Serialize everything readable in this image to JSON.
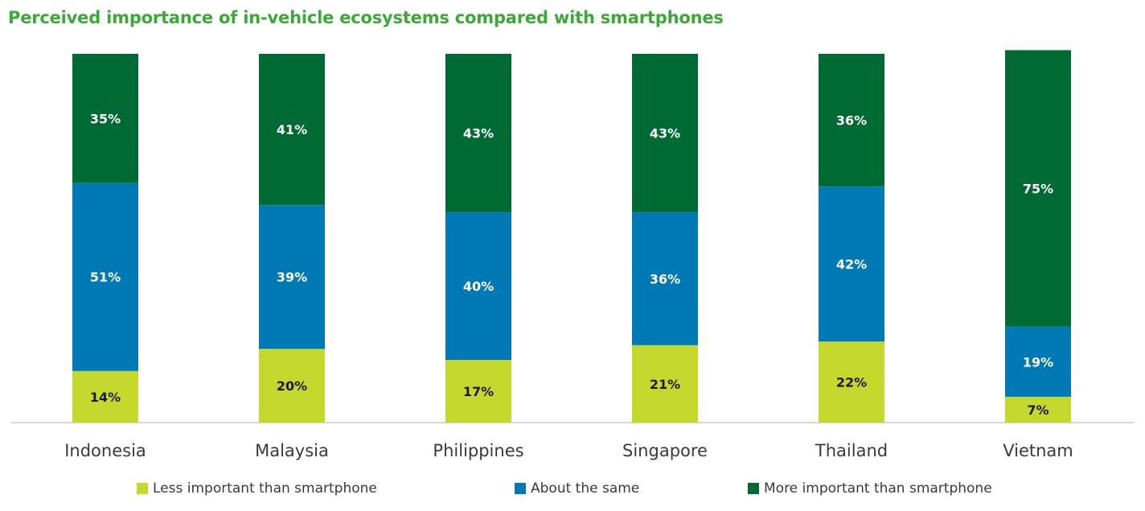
{
  "title": "Perceived importance of in-vehicle ecosystems compared with smartphones",
  "colors": {
    "less": "#c4d82e",
    "same": "#0079b4",
    "more": "#006a35",
    "title": "#3aa935",
    "axis": "#cccccc"
  },
  "legend": [
    {
      "key": "less",
      "label": "Less important than smartphone"
    },
    {
      "key": "same",
      "label": "About the same"
    },
    {
      "key": "more",
      "label": "More important than smartphone"
    }
  ],
  "chart_data": {
    "type": "bar",
    "stacked": true,
    "title": "Perceived importance of in-vehicle ecosystems compared with smartphones",
    "categories": [
      "Indonesia",
      "Malaysia",
      "Philippines",
      "Singapore",
      "Thailand",
      "Vietnam"
    ],
    "series": [
      {
        "name": "Less important than smartphone",
        "key": "less",
        "values": [
          14,
          20,
          17,
          21,
          22,
          7
        ],
        "labels": [
          "14%",
          "20%",
          "17%",
          "21%",
          "22%",
          "7%"
        ]
      },
      {
        "name": "About the same",
        "key": "same",
        "values": [
          51,
          39,
          40,
          36,
          42,
          19
        ],
        "labels": [
          "51%",
          "39%",
          "40%",
          "36%",
          "42%",
          "19%"
        ]
      },
      {
        "name": "More important than smartphone",
        "key": "more",
        "values": [
          35,
          41,
          43,
          43,
          36,
          75
        ],
        "labels": [
          "35%",
          "41%",
          "43%",
          "43%",
          "36%",
          "75%"
        ]
      }
    ],
    "ylim": [
      0,
      100
    ],
    "legend_position": "bottom",
    "grid": false
  }
}
